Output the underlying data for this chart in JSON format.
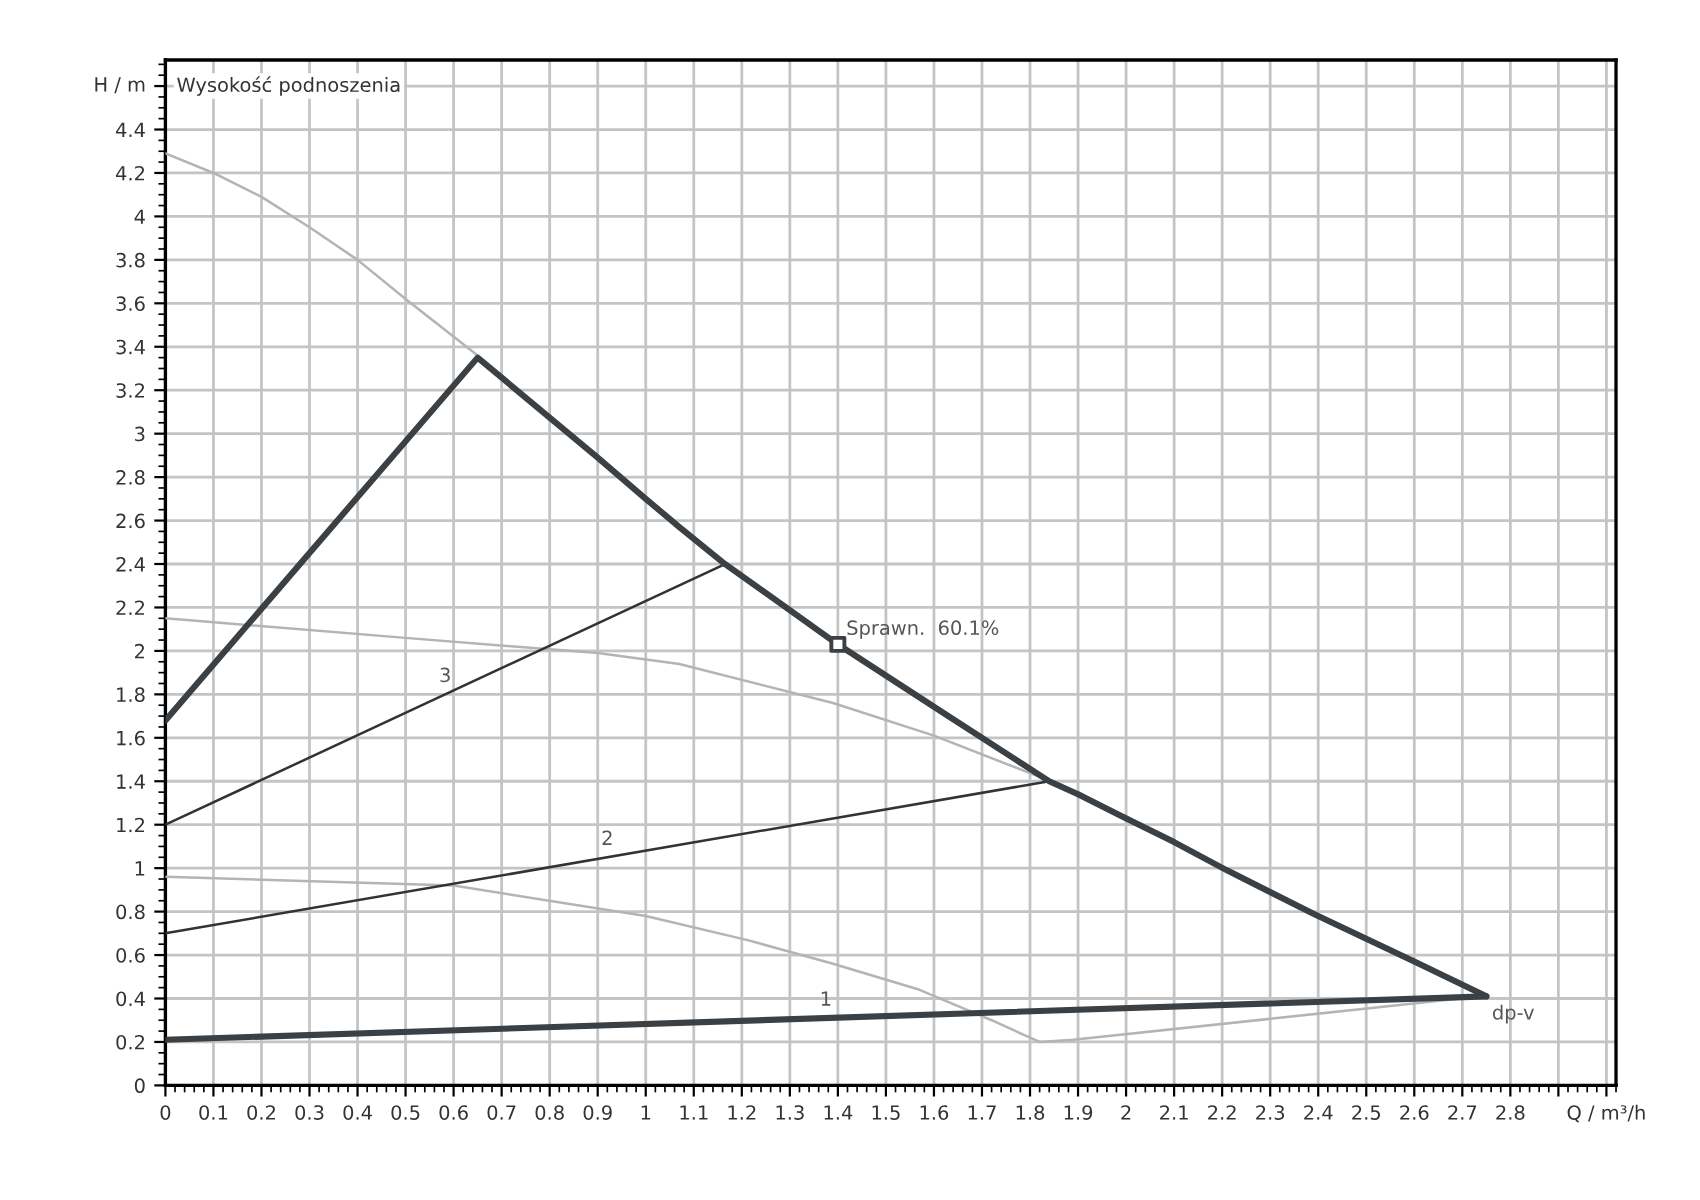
{
  "chart_data": {
    "type": "line",
    "title": "Wysokość podnoszenia",
    "xlabel": "Q / m³/h",
    "ylabel": "H / m",
    "xlim": [
      0,
      3.02
    ],
    "ylim": [
      0,
      4.72
    ],
    "xticks": [
      0,
      0.1,
      0.2,
      0.3,
      0.4,
      0.5,
      0.6,
      0.7,
      0.8,
      0.9,
      1,
      1.1,
      1.2,
      1.3,
      1.4,
      1.5,
      1.6,
      1.7,
      1.8,
      1.9,
      2,
      2.1,
      2.2,
      2.3,
      2.4,
      2.5,
      2.6,
      2.7,
      2.8,
      {
        "value": 2.9,
        "label": null
      },
      {
        "value": 3,
        "label": null
      }
    ],
    "yticks": [
      0,
      0.2,
      0.4,
      0.6,
      0.8,
      1,
      1.2,
      1.4,
      1.6,
      1.8,
      2,
      2.2,
      2.4,
      2.6,
      2.8,
      3,
      3.2,
      3.4,
      3.6,
      3.8,
      4,
      4.2,
      4.4,
      {
        "value": 4.6,
        "label": null
      }
    ],
    "grid": true,
    "legend": false,
    "series": [
      {
        "color": "#b4b4b4",
        "x": [
          0,
          0.1,
          0.2,
          0.3,
          0.4,
          0.5,
          0.65
        ],
        "values": [
          4.29,
          4.2,
          4.09,
          3.95,
          3.8,
          3.62,
          3.36
        ]
      },
      {
        "color": "#b4b4b4",
        "x": [
          0,
          0.5,
          0.9,
          1.07,
          1.39,
          1.6,
          1.82,
          1.85
        ],
        "values": [
          2.15,
          2.06,
          1.99,
          1.94,
          1.76,
          1.61,
          1.42,
          1.39
        ]
      },
      {
        "color": "#b4b4b4",
        "x": [
          0,
          0.6,
          1.0,
          1.21,
          1.39,
          1.57,
          1.72,
          1.82,
          1.89,
          2.74
        ],
        "values": [
          0.96,
          0.92,
          0.78,
          0.67,
          0.56,
          0.44,
          0.3,
          0.2,
          0.21,
          0.41
        ]
      },
      {
        "name": "3",
        "color": "#2f3438",
        "x": [
          0,
          1.165
        ],
        "values": [
          1.2,
          2.4
        ]
      },
      {
        "name": "2",
        "color": "#2f3438",
        "x": [
          0,
          1.84
        ],
        "values": [
          0.7,
          1.4
        ]
      },
      {
        "color": "#3b4045",
        "x": [
          0,
          0.65,
          0.9,
          1.0,
          1.07,
          1.165,
          1.4,
          1.63,
          1.77,
          1.84,
          1.9,
          1.99,
          2.1,
          2.21,
          2.39,
          2.6,
          2.75
        ],
        "values": [
          1.68,
          3.35,
          2.89,
          2.7,
          2.57,
          2.4,
          2.03,
          1.7,
          1.5,
          1.4,
          1.34,
          1.24,
          1.12,
          0.99,
          0.79,
          0.57,
          0.41
        ]
      },
      {
        "name": "1",
        "color": "#3b4045",
        "x": [
          0,
          2.75
        ],
        "values": [
          0.21,
          0.41
        ]
      },
      {
        "type": "scatter",
        "marker": "square",
        "color": "#3b4045",
        "x": [
          1.4
        ],
        "values": [
          2.03
        ]
      }
    ],
    "annotations": [
      {
        "text": "Sprawn.  60.1%",
        "x": 1.4,
        "y": 2.03
      },
      {
        "text": "dp-v",
        "x": 2.75,
        "y": 0.41
      }
    ]
  }
}
